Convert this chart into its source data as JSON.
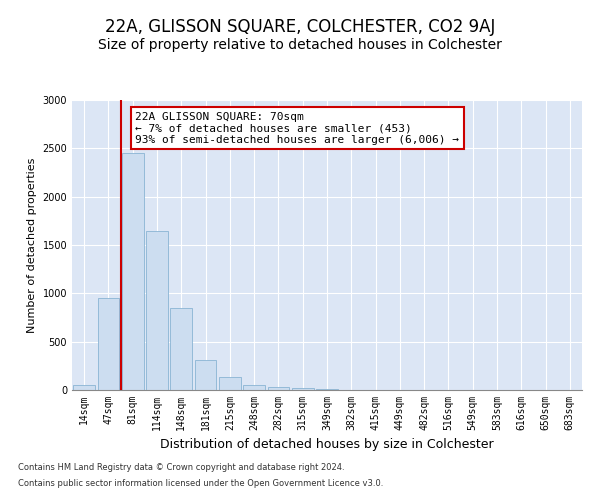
{
  "title": "22A, GLISSON SQUARE, COLCHESTER, CO2 9AJ",
  "subtitle": "Size of property relative to detached houses in Colchester",
  "xlabel": "Distribution of detached houses by size in Colchester",
  "ylabel": "Number of detached properties",
  "categories": [
    "14sqm",
    "47sqm",
    "81sqm",
    "114sqm",
    "148sqm",
    "181sqm",
    "215sqm",
    "248sqm",
    "282sqm",
    "315sqm",
    "349sqm",
    "382sqm",
    "415sqm",
    "449sqm",
    "482sqm",
    "516sqm",
    "549sqm",
    "583sqm",
    "616sqm",
    "650sqm",
    "683sqm"
  ],
  "values": [
    50,
    950,
    2450,
    1650,
    850,
    310,
    130,
    55,
    35,
    20,
    10,
    5,
    3,
    2,
    1,
    0,
    0,
    0,
    0,
    0,
    0
  ],
  "bar_color": "#ccddf0",
  "bar_edge_color": "#8ab4d4",
  "vline_x_index": 2,
  "vline_color": "#cc0000",
  "annotation_text": "22A GLISSON SQUARE: 70sqm\n← 7% of detached houses are smaller (453)\n93% of semi-detached houses are larger (6,006) →",
  "annotation_box_facecolor": "#ffffff",
  "annotation_box_edgecolor": "#cc0000",
  "ylim": [
    0,
    3000
  ],
  "yticks": [
    0,
    500,
    1000,
    1500,
    2000,
    2500,
    3000
  ],
  "plot_bg_color": "#dce6f5",
  "footer_line1": "Contains HM Land Registry data © Crown copyright and database right 2024.",
  "footer_line2": "Contains public sector information licensed under the Open Government Licence v3.0.",
  "title_fontsize": 12,
  "subtitle_fontsize": 10,
  "xlabel_fontsize": 9,
  "ylabel_fontsize": 8,
  "tick_fontsize": 7,
  "annotation_fontsize": 8
}
